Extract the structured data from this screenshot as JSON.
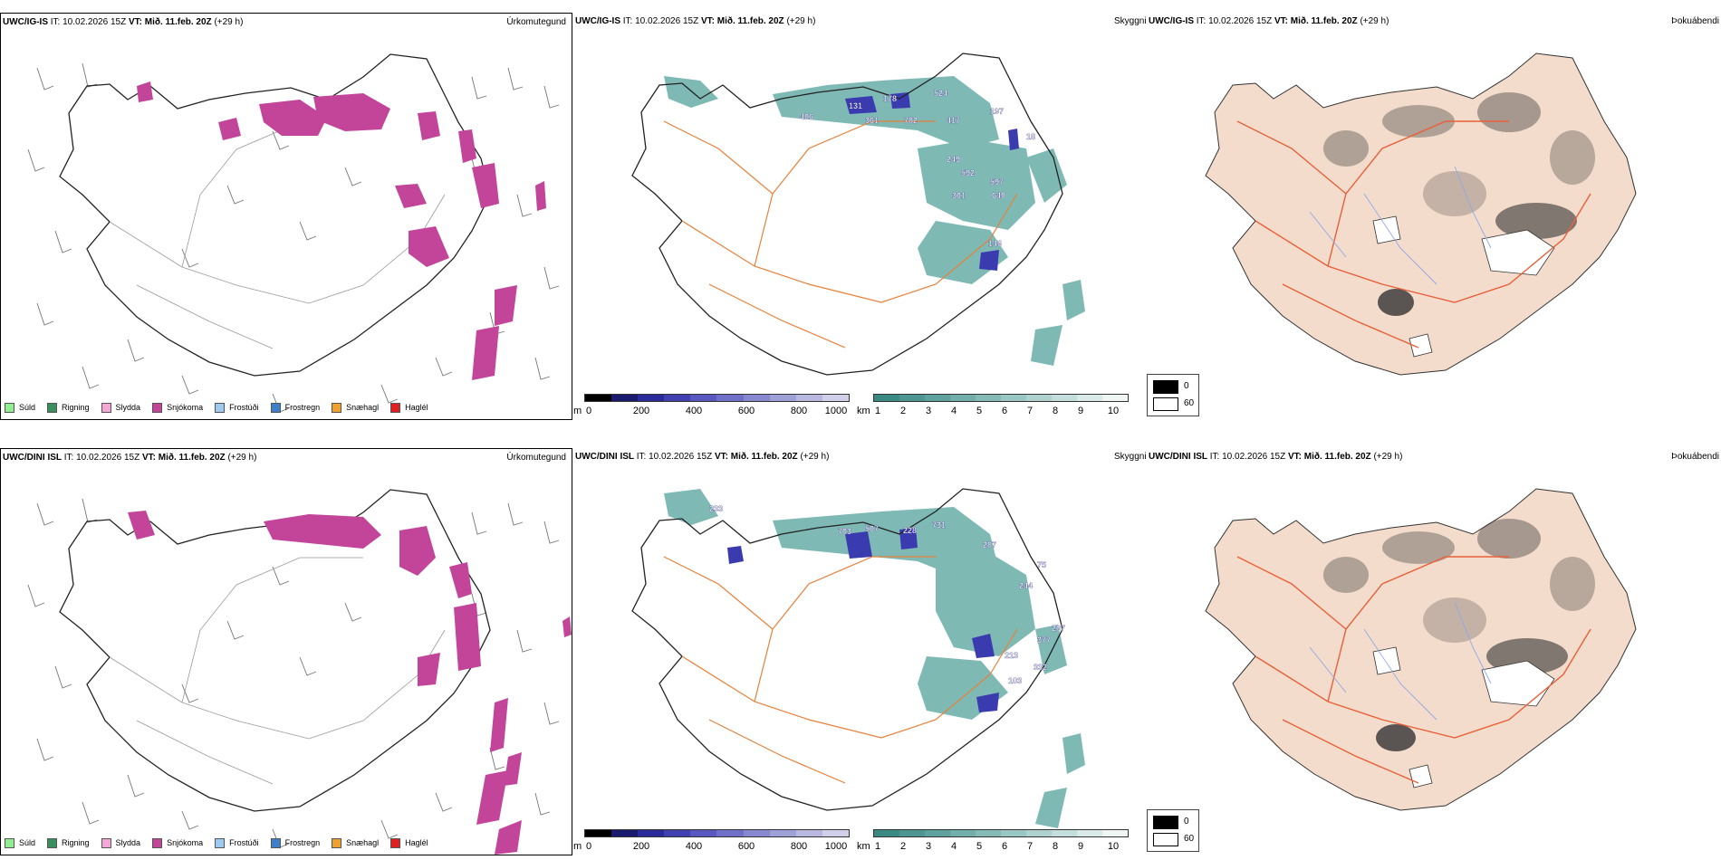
{
  "rows": [
    {
      "model": "UWC/IG-IS",
      "it": "IT: 10.02.2026 15Z",
      "vt_label": "VT:",
      "vt_value": "Mið. 11.feb. 20Z",
      "lead": "(+29 h)",
      "labels": [
        {
          "text": "131"
        },
        {
          "text": "178"
        },
        {
          "text": "524"
        },
        {
          "text": "406"
        },
        {
          "text": "361"
        },
        {
          "text": "782"
        },
        {
          "text": "417"
        },
        {
          "text": "197"
        },
        {
          "text": "249"
        },
        {
          "text": "592"
        },
        {
          "text": "597"
        },
        {
          "text": "301"
        },
        {
          "text": "640"
        },
        {
          "text": "146"
        },
        {
          "text": "18"
        }
      ]
    },
    {
      "model": "UWC/DINI ISL",
      "it": "IT: 10.02.2026 15Z",
      "vt_label": "VT:",
      "vt_value": "Mið. 11.feb. 20Z",
      "lead": "(+29 h)",
      "labels": [
        {
          "text": "703"
        },
        {
          "text": "507"
        },
        {
          "text": "228"
        },
        {
          "text": "731"
        },
        {
          "text": "287"
        },
        {
          "text": "75"
        },
        {
          "text": "244"
        },
        {
          "text": "207"
        },
        {
          "text": "377"
        },
        {
          "text": "213"
        },
        {
          "text": "332"
        },
        {
          "text": "103"
        },
        {
          "text": "233"
        }
      ]
    }
  ],
  "panel_types": {
    "precip": "Úrkomutegund",
    "visibility": "Skyggni",
    "fog": "Þokuábendi"
  },
  "precip_legend": [
    {
      "label": "Súld",
      "color": "#90ee90"
    },
    {
      "label": "Rigning",
      "color": "#3a8f5f"
    },
    {
      "label": "Slydda",
      "color": "#f4a6d7"
    },
    {
      "label": "Snjókoma",
      "color": "#c2459a"
    },
    {
      "label": "Frostúði",
      "color": "#9ec9f0"
    },
    {
      "label": "Frostregn",
      "color": "#3d7fc9"
    },
    {
      "label": "Snæhagl",
      "color": "#f0a030"
    },
    {
      "label": "Haglél",
      "color": "#e02020"
    }
  ],
  "height_bar": {
    "unit": "m",
    "ticks": [
      "0",
      "200",
      "400",
      "600",
      "800",
      "1000"
    ],
    "colors": [
      "#000000",
      "#1a1a6e",
      "#2a2a9a",
      "#4040b0",
      "#5858c0",
      "#7070c8",
      "#8888d0",
      "#a0a0d8",
      "#b8b8e0",
      "#d0d0ea"
    ]
  },
  "vis_bar": {
    "unit": "km",
    "ticks": [
      "1",
      "2",
      "3",
      "4",
      "5",
      "6",
      "7",
      "8",
      "9",
      "10"
    ],
    "colors": [
      "#3a8a84",
      "#4d9691",
      "#5fa29d",
      "#72aeaa",
      "#86bab6",
      "#9ac6c3",
      "#afd2cf",
      "#c4dedc",
      "#d9eae8",
      "#f0f6f5"
    ]
  },
  "fog_legend": {
    "dark_label": "0",
    "light_label": "60",
    "dark_color": "#000000",
    "light_color": "#ffffff"
  },
  "colors": {
    "snow": "#c2459a",
    "vis_fill": "#5ea8a2",
    "height_fill": "#3b3bb0",
    "land_fog": "#f3dccb",
    "roads": "#e8803a",
    "fog_roads": "#e8603a",
    "rivers": "#8fa8e8"
  }
}
